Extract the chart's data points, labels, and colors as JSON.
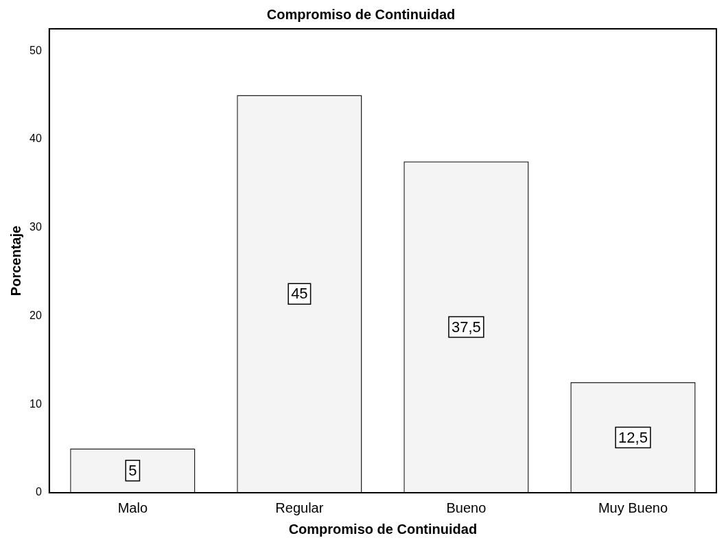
{
  "chart_data": {
    "type": "bar",
    "title": "Compromiso de Continuidad",
    "xlabel": "Compromiso de Continuidad",
    "ylabel": "Porcentaje",
    "categories": [
      "Malo",
      "Regular",
      "Bueno",
      "Muy Bueno"
    ],
    "values": [
      5,
      45,
      37.5,
      12.5
    ],
    "value_labels": [
      "5",
      "45",
      "37,5",
      "12,5"
    ],
    "color": "#f4f4f4",
    "ylim": [
      0,
      52.5
    ],
    "yticks": [
      0,
      10,
      20,
      30,
      40,
      50
    ],
    "grid": false,
    "legend": false
  }
}
